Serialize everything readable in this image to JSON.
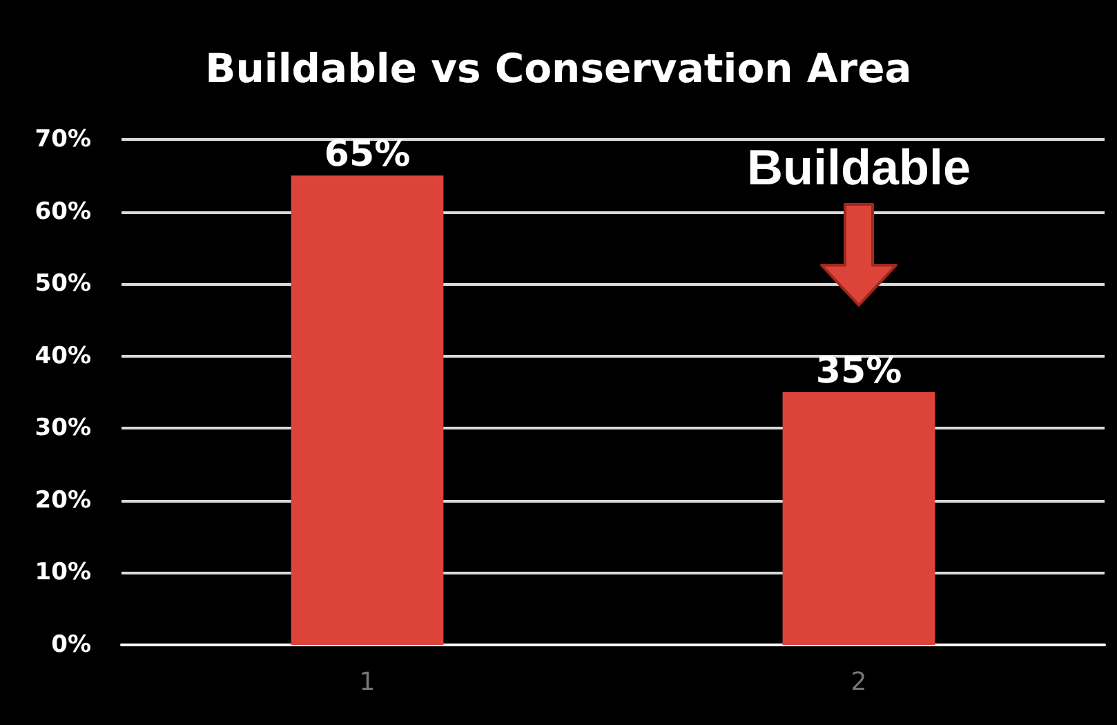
{
  "chart_data": {
    "type": "bar",
    "title": "Buildable vs Conservation Area",
    "categories": [
      "1",
      "2"
    ],
    "values": [
      65,
      35
    ],
    "color": "#dc4439",
    "value_labels": [
      "65%",
      "35%"
    ],
    "ylim": [
      0,
      70
    ],
    "yticks": [
      {
        "value": 0,
        "label": "0%"
      },
      {
        "value": 10,
        "label": "10%"
      },
      {
        "value": 20,
        "label": "20%"
      },
      {
        "value": 30,
        "label": "30%"
      },
      {
        "value": 40,
        "label": "40%"
      },
      {
        "value": 50,
        "label": "50%"
      },
      {
        "value": 60,
        "label": "60%"
      },
      {
        "value": 70,
        "label": "70%"
      }
    ],
    "grid": "y",
    "annotations": [
      "Buildable"
    ]
  }
}
